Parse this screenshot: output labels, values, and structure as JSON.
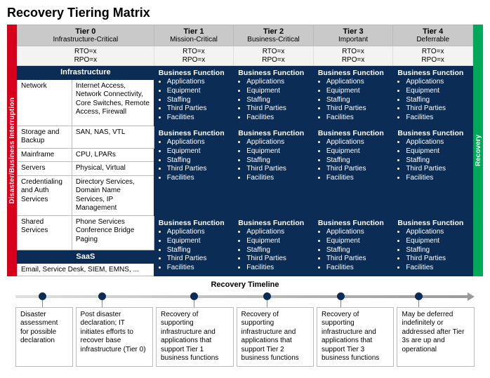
{
  "title": "Recovery Tiering Matrix",
  "left_stripe": "Disaster/Business Interruption",
  "right_stripe": "Recovery",
  "colors": {
    "left_stripe": "#d6001c",
    "right_stripe": "#00a85a",
    "navy": "#0b2d55",
    "header_bg": "#c9c9c9",
    "rto_bg": "#f3f3f3"
  },
  "tiers": [
    {
      "name": "Tier 0",
      "sub": "Infrastructure-Critical",
      "rto": "RTO=x",
      "rpo": "RPO=x"
    },
    {
      "name": "Tier 1",
      "sub": "Mission-Critical",
      "rto": "RTO=x",
      "rpo": "RPO=x"
    },
    {
      "name": "Tier 2",
      "sub": "Business-Critical",
      "rto": "RTO=x",
      "rpo": "RPO=x"
    },
    {
      "name": "Tier 3",
      "sub": "Important",
      "rto": "RTO=x",
      "rpo": "RPO=x"
    },
    {
      "name": "Tier 4",
      "sub": "Deferrable",
      "rto": "RTO=x",
      "rpo": "RPO=x"
    }
  ],
  "infra_label": "Infrastructure",
  "infra_rows": [
    {
      "name": "Network",
      "detail": "Internet Access, Network Connectivity, Core Switches, Remote Access, Firewall"
    },
    {
      "name": "Storage and Backup",
      "detail": "SAN, NAS, VTL"
    },
    {
      "name": "Mainframe",
      "detail": "CPU, LPARs"
    },
    {
      "name": "Servers",
      "detail": "Physical, Virtual"
    },
    {
      "name": "Credentialing and Auth Services",
      "detail": "Directory Services, Domain Name Services, IP Management"
    },
    {
      "name": "Shared Services",
      "detail": "Phone Services Conference Bridge Paging"
    }
  ],
  "bf": {
    "title": "Business Function",
    "items": [
      "Applications",
      "Equipment",
      "Staffing",
      "Third Parties",
      "Facilities"
    ]
  },
  "saas_label": "SaaS",
  "saas_text": "Email, Service Desk, SIEM, EMNS, ...",
  "timeline_label": "Recovery Timeline",
  "timeline_dot_positions_pct": [
    5,
    18,
    38,
    54,
    70,
    87
  ],
  "timeline_boxes": [
    "Disaster assessment for possible declaration",
    "Post disaster declaration; IT initiates efforts to recover base infrastructure (Tier 0)",
    "Recovery of supporting infrastructure and applications that support Tier 1 business functions",
    "Recovery of supporting infrastructure and applications that support Tier 2 business functions",
    "Recovery of supporting infrastructure and applications that support Tier 3 business functions",
    "May be deferred indefinitely or addressed after Tier 3s are up and operational"
  ]
}
